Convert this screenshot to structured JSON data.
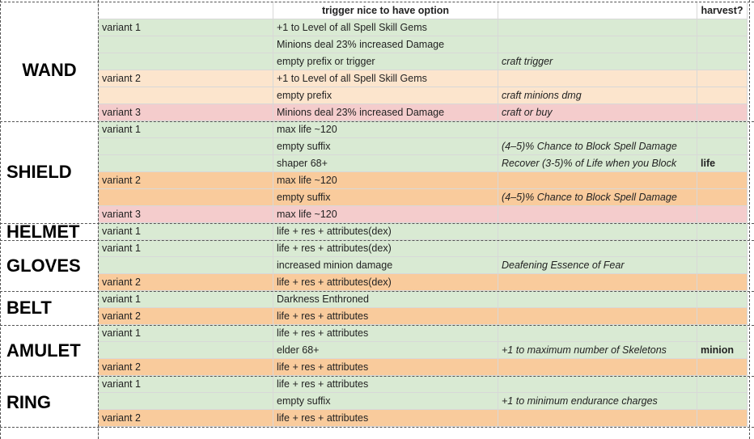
{
  "header": {
    "title": "trigger nice to have option",
    "harvest": "harvest?"
  },
  "colors": {
    "green": "#d9ead3",
    "peach": "#fce5cd",
    "pink": "#f4cccc",
    "orange": "#f9cb9c",
    "white": "#ffffff"
  },
  "sections": [
    {
      "name": "WAND",
      "rows": [
        {
          "v": "variant 1",
          "c": "+1 to Level of all Spell Skill Gems",
          "d": "",
          "h": "",
          "color": "green"
        },
        {
          "v": "",
          "c": "Minions deal 23% increased Damage",
          "d": "",
          "h": "",
          "color": "green"
        },
        {
          "v": "",
          "c": "empty prefix or trigger",
          "d": "craft trigger",
          "h": "",
          "color": "green"
        },
        {
          "v": "variant 2",
          "c": "+1 to Level of all Spell Skill Gems",
          "d": "",
          "h": "",
          "color": "peach"
        },
        {
          "v": "",
          "c": "empty prefix",
          "d": "craft minions dmg",
          "h": "",
          "color": "peach"
        },
        {
          "v": "variant 3",
          "c": "Minions deal 23% increased Damage",
          "d": "craft or buy",
          "h": "",
          "color": "pink"
        }
      ]
    },
    {
      "name": "SHIELD",
      "rows": [
        {
          "v": "variant 1",
          "c": "max life ~120",
          "d": "",
          "h": "",
          "color": "green"
        },
        {
          "v": "",
          "c": "empty suffix",
          "d": "(4–5)% Chance to Block Spell Damage",
          "h": "",
          "color": "green"
        },
        {
          "v": "",
          "c": "shaper 68+",
          "d": "Recover (3-5)% of Life when you Block",
          "h": "life",
          "color": "green"
        },
        {
          "v": "variant 2",
          "c": "max life ~120",
          "d": "",
          "h": "",
          "color": "orange"
        },
        {
          "v": "",
          "c": "empty suffix",
          "d": "(4–5)% Chance to Block Spell Damage",
          "h": "",
          "color": "orange"
        },
        {
          "v": "variant 3",
          "c": "max life ~120",
          "d": "",
          "h": "",
          "color": "pink"
        }
      ]
    },
    {
      "name": "HELMET",
      "rows": [
        {
          "v": "variant 1",
          "c": "life + res + attributes(dex)",
          "d": "",
          "h": "",
          "color": "green"
        }
      ]
    },
    {
      "name": "GLOVES",
      "rows": [
        {
          "v": "variant 1",
          "c": "life + res + attributes(dex)",
          "d": "",
          "h": "",
          "color": "green"
        },
        {
          "v": "",
          "c": "increased minion damage",
          "d": "Deafening Essence of Fear",
          "h": "",
          "color": "green"
        },
        {
          "v": "variant 2",
          "c": "life + res + attributes(dex)",
          "d": "",
          "h": "",
          "color": "orange"
        }
      ]
    },
    {
      "name": "BELT",
      "rows": [
        {
          "v": "variant 1",
          "c": "Darkness Enthroned",
          "d": "",
          "h": "",
          "color": "green"
        },
        {
          "v": "variant 2",
          "c": "life + res + attributes",
          "d": "",
          "h": "",
          "color": "orange"
        }
      ]
    },
    {
      "name": "AMULET",
      "rows": [
        {
          "v": "variant 1",
          "c": "life + res + attributes",
          "d": "",
          "h": "",
          "color": "green"
        },
        {
          "v": "",
          "c": "elder 68+",
          "d": "+1 to maximum number of Skeletons",
          "h": "minion",
          "color": "green"
        },
        {
          "v": "variant 2",
          "c": "life + res + attributes",
          "d": "",
          "h": "",
          "color": "orange"
        }
      ]
    },
    {
      "name": "RING",
      "rows": [
        {
          "v": "variant 1",
          "c": "life + res + attributes",
          "d": "",
          "h": "",
          "color": "green"
        },
        {
          "v": "",
          "c": "empty suffix",
          "d": "+1 to minimum endurance charges",
          "h": "",
          "color": "green"
        },
        {
          "v": "variant 2",
          "c": "life + res + attributes",
          "d": "",
          "h": "",
          "color": "orange"
        }
      ]
    }
  ]
}
